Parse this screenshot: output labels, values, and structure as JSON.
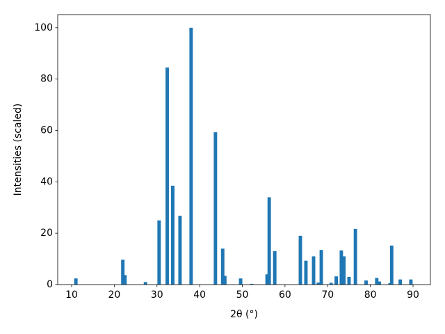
{
  "chart_data": {
    "type": "bar",
    "xlabel": "2θ (°)",
    "ylabel": "Intensities (scaled)",
    "x": [
      11.0,
      22.0,
      22.5,
      27.3,
      30.5,
      32.4,
      33.7,
      35.4,
      38.0,
      43.7,
      45.4,
      45.9,
      49.6,
      52.2,
      55.8,
      56.3,
      57.6,
      63.6,
      64.9,
      66.7,
      67.8,
      68.5,
      70.8,
      72.0,
      73.2,
      73.8,
      75.0,
      76.5,
      79.0,
      81.5,
      82.1,
      84.6,
      85.0,
      87.0,
      89.5
    ],
    "values": [
      2.4,
      9.7,
      3.7,
      1.0,
      25.0,
      84.5,
      38.5,
      26.8,
      100,
      59.3,
      14.0,
      3.4,
      2.4,
      0.3,
      4.0,
      34.0,
      13.0,
      19.0,
      9.3,
      11.0,
      0.8,
      13.5,
      0.7,
      3.2,
      13.3,
      11.0,
      3.0,
      21.7,
      1.6,
      2.6,
      1.2,
      0.6,
      15.2,
      2.0,
      2.0
    ],
    "color": "#1f77b4",
    "xlim": [
      6.74,
      94.07
    ],
    "xticks": [
      10,
      20,
      30,
      40,
      50,
      60,
      70,
      80,
      90
    ],
    "ylim": [
      0,
      105.1
    ],
    "yticks": [
      0,
      20,
      40,
      60,
      80,
      100
    ],
    "grid": false
  }
}
